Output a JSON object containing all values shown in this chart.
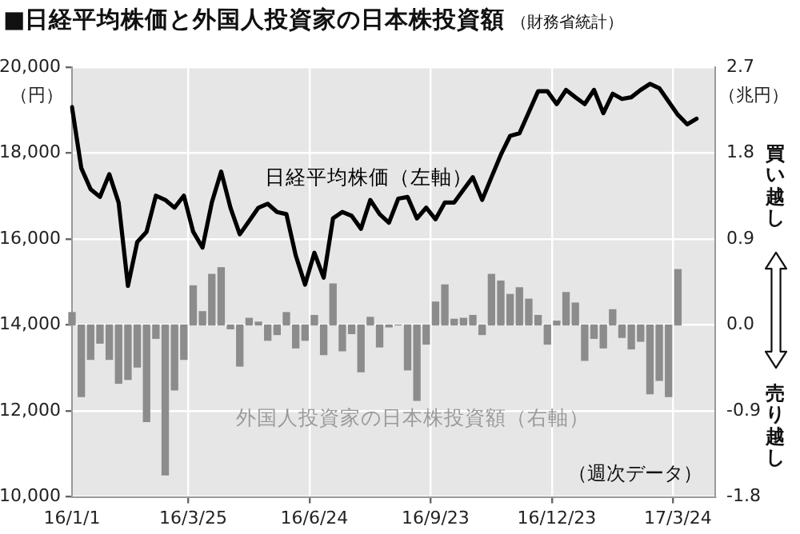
{
  "chart_data": {
    "type": "bar",
    "title": "■日経平均株価と外国人投資家の日本株投資額",
    "subtitle": "（財務省統計）",
    "categories": [
      "16/1/1",
      null,
      null,
      null,
      null,
      null,
      null,
      null,
      null,
      null,
      null,
      null,
      null,
      "16/3/25",
      null,
      null,
      null,
      null,
      null,
      null,
      null,
      null,
      null,
      null,
      null,
      null,
      "16/6/24",
      null,
      null,
      null,
      null,
      null,
      null,
      null,
      null,
      null,
      null,
      null,
      null,
      "16/9/23",
      null,
      null,
      null,
      null,
      null,
      null,
      null,
      null,
      null,
      null,
      null,
      null,
      "16/12/23",
      null,
      null,
      null,
      null,
      null,
      null,
      null,
      null,
      null,
      null,
      null,
      null,
      "17/3/24",
      null,
      null,
      null,
      null
    ],
    "series": [
      {
        "name": "外国人投資家の日本株投資額（右軸）",
        "axis": "y2",
        "color": "#8c8c8c",
        "values": [
          0.13,
          -0.75,
          -0.36,
          -0.19,
          -0.36,
          -0.61,
          -0.57,
          -0.44,
          -1.01,
          -0.14,
          -1.57,
          -0.68,
          -0.36,
          0.41,
          0.14,
          0.53,
          0.6,
          -0.04,
          -0.43,
          0.07,
          0.03,
          -0.16,
          -0.1,
          0.13,
          -0.24,
          -0.16,
          0.1,
          -0.31,
          0.43,
          -0.27,
          -0.09,
          -0.49,
          0.08,
          -0.23,
          -0.02,
          0,
          -0.47,
          -0.79,
          -0.2,
          0.24,
          0.42,
          0.06,
          0.07,
          0.1,
          -0.1,
          0.53,
          0.46,
          0.32,
          0.39,
          0.27,
          0.1,
          -0.2,
          0.04,
          0.34,
          0.23,
          -0.37,
          -0.14,
          -0.24,
          0.16,
          -0.13,
          -0.25,
          -0.17,
          -0.72,
          -0.58,
          -0.75,
          0.58,
          null,
          null,
          null,
          null
        ]
      },
      {
        "name": "日経平均株価（左軸）",
        "type": "line",
        "axis": "y",
        "color": "#000000",
        "values": [
          19070,
          17650,
          17160,
          16980,
          17510,
          16850,
          14910,
          15930,
          16170,
          17010,
          16910,
          16730,
          17010,
          16170,
          15800,
          16850,
          17570,
          16730,
          16110,
          16420,
          16730,
          16820,
          16630,
          16580,
          15620,
          14940,
          15680,
          15100,
          16480,
          16630,
          16540,
          16240,
          16910,
          16580,
          16380,
          16940,
          16980,
          16480,
          16730,
          16460,
          16850,
          16850,
          17150,
          17440,
          16910,
          17440,
          17960,
          18400,
          18460,
          18950,
          19440,
          19440,
          19140,
          19470,
          19300,
          19140,
          19470,
          18930,
          19380,
          19260,
          19300,
          19470,
          19610,
          19510,
          19200,
          18890,
          18670,
          18800,
          null,
          null
        ]
      }
    ],
    "ylabel": "（円）",
    "y2label": "（兆円）",
    "ylim": [
      10000,
      20000
    ],
    "yticks": [
      {
        "value": 10000,
        "label": "10,000"
      },
      {
        "value": 12000,
        "label": "12,000"
      },
      {
        "value": 14000,
        "label": "14,000"
      },
      {
        "value": 16000,
        "label": "16,000"
      },
      {
        "value": 18000,
        "label": "18,000"
      },
      {
        "value": 20000,
        "label": "20,000"
      }
    ],
    "y2lim": [
      -1.8,
      2.7
    ],
    "y2ticks": [
      -1.8,
      -0.9,
      {
        "value": 0,
        "label": "0.0"
      },
      0.9,
      1.8,
      2.7
    ],
    "annotations": [
      "（週次データ）",
      "買い越し",
      "売り越し"
    ],
    "grid": true,
    "marker": "none",
    "line_style": "solid"
  }
}
